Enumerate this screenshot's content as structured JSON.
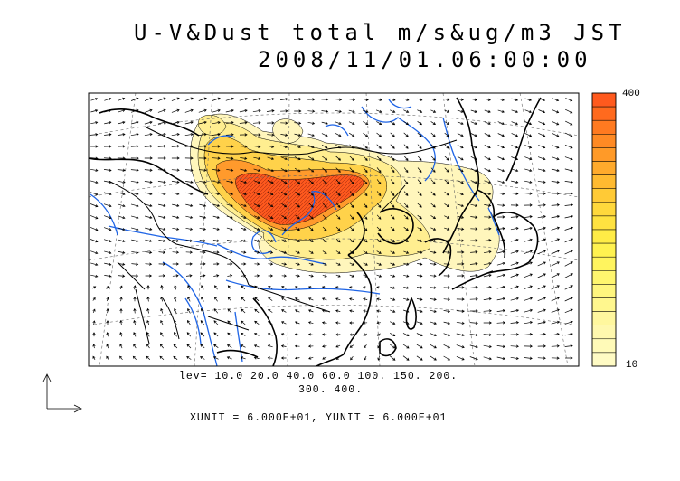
{
  "title": {
    "line1": "U-V&Dust total m/s&ug/m3 JST",
    "line2": "2008/11/01.06:00:00"
  },
  "levels_line1": "lev= 10.0 20.0 40.0 60.0 100. 150. 200.",
  "levels_line2": "300. 400.",
  "units_line": "XUNIT = 6.000E+01, YUNIT = 6.000E+01",
  "colorbar": {
    "max_label": "400",
    "min_label": "10",
    "colors": [
      "#ff5a1e",
      "#ff6a1e",
      "#ff7a20",
      "#ff8a24",
      "#ff9a28",
      "#ffaa2c",
      "#ffba30",
      "#ffca36",
      "#ffd83c",
      "#ffe240",
      "#ffec46",
      "#fff250",
      "#fff45e",
      "#fff66e",
      "#fff67e",
      "#fff78e",
      "#fff79e",
      "#fff8ae",
      "#fffab8",
      "#fffbc4"
    ],
    "contour_fill_colors": {
      "low": "#fff6b8",
      "mid": "#ffe87a",
      "high": "#ffc838",
      "max": "#ff5a1e"
    }
  },
  "map": {
    "land_color": "#000000",
    "river_color": "#1e64e6",
    "grid_color": "#666666",
    "vector_color": "#000000"
  },
  "reference_vector": {
    "label": ""
  }
}
